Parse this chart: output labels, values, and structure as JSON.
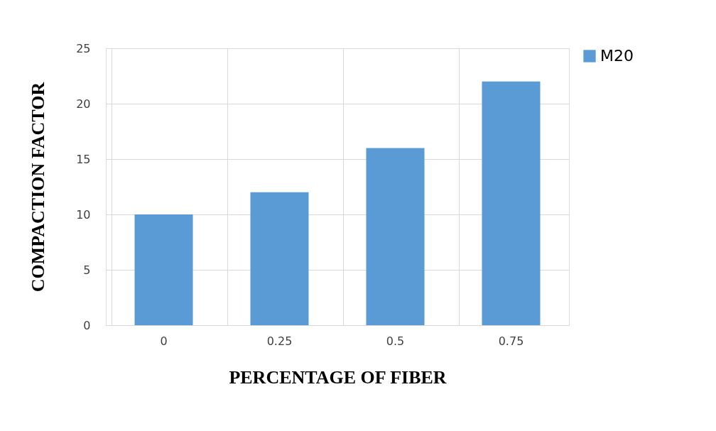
{
  "chart_data": {
    "type": "bar",
    "xlabel": "PERCENTAGE OF FIBER",
    "ylabel": "COMPACTION FACTOR",
    "categories": [
      "0",
      "0.25",
      "0.5",
      "0.75"
    ],
    "series": [
      {
        "name": "M20",
        "color": "#5b9bd5",
        "values": [
          10,
          12,
          16,
          22
        ]
      }
    ],
    "ylim": [
      0,
      25
    ],
    "yticks": [
      0,
      5,
      10,
      15,
      20,
      25
    ],
    "grid": true,
    "legend": "right"
  }
}
